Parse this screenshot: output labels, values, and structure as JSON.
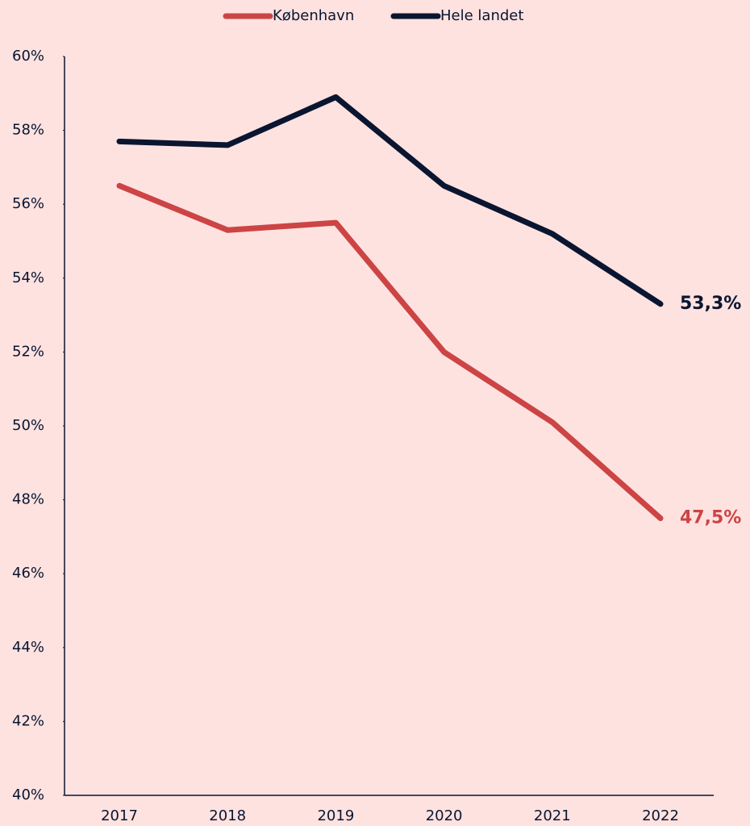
{
  "chart_data": {
    "type": "line",
    "categories": [
      "2017",
      "2018",
      "2019",
      "2020",
      "2021",
      "2022"
    ],
    "series": [
      {
        "name": "København",
        "color": "#cc4444",
        "values": [
          56.5,
          55.3,
          55.5,
          52.0,
          50.1,
          47.5
        ],
        "value_labels": [
          null,
          null,
          null,
          null,
          null,
          "47,5%"
        ]
      },
      {
        "name": "Hele landet",
        "color": "#0a1530",
        "values": [
          57.7,
          57.6,
          58.9,
          56.5,
          55.2,
          53.3
        ],
        "value_labels": [
          null,
          null,
          null,
          null,
          null,
          "53,3%"
        ]
      }
    ],
    "ylim": [
      40,
      60
    ],
    "yticks": [
      {
        "value": 40,
        "label": "40%"
      },
      {
        "value": 42,
        "label": "42%"
      },
      {
        "value": 44,
        "label": "44%"
      },
      {
        "value": 46,
        "label": "46%"
      },
      {
        "value": 48,
        "label": "48%"
      },
      {
        "value": 50,
        "label": "50%"
      },
      {
        "value": 52,
        "label": "52%"
      },
      {
        "value": 54,
        "label": "54%"
      },
      {
        "value": 56,
        "label": "56%"
      },
      {
        "value": 58,
        "label": "58%"
      },
      {
        "value": 60,
        "label": "60%"
      }
    ],
    "legend": "top",
    "grid": false
  }
}
